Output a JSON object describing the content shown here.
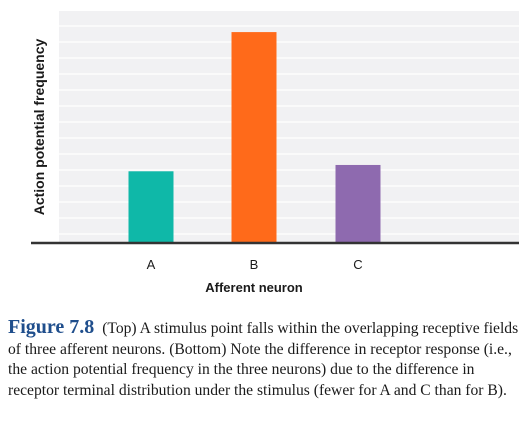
{
  "chart_data": {
    "type": "bar",
    "categories": [
      "A",
      "B",
      "C"
    ],
    "values": [
      34,
      100,
      37
    ],
    "colors": [
      "#0fb8a8",
      "#ff6a1a",
      "#8e6aaf"
    ],
    "xlabel": "Afferent neuron",
    "ylabel": "Action potential frequency",
    "ylim": [
      0,
      110
    ],
    "grid": true,
    "legend": "none",
    "background": "#f1f1f3"
  },
  "caption": {
    "figure_label": "Figure 7.8",
    "text": "(Top) A stimulus point falls within the overlapping receptive fields of three afferent neurons. (Bottom) Note the difference in receptor response (i.e., the action potential frequency in the three neurons) due to the difference in receptor terminal distribution under the stimulus (fewer for A and C than for B)."
  }
}
